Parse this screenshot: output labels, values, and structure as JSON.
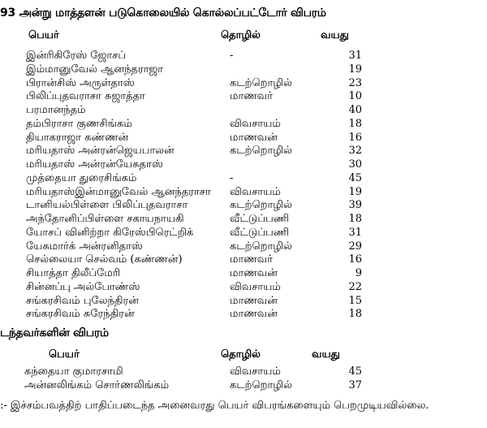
{
  "section1": {
    "title": "93 அன்று மாத்தளன் படுகொலையில் கொல்லப்பட்டோர் விபரம்",
    "headers": {
      "name": "பெயர்",
      "occupation": "தொழில்",
      "age": "வயது"
    },
    "rows": [
      {
        "name": "இன்ரிகிரேஸ் ஜோசப்",
        "occupation": "-",
        "age": "31"
      },
      {
        "name": "இம்மானுவேல் ஆனந்தராஜா",
        "occupation": "",
        "age": "19"
      },
      {
        "name": "பிரான்சிஸ் அருள்தாஸ்",
        "occupation": "கடற்றொழில்",
        "age": "23"
      },
      {
        "name": "பிலிப்புதவராசா சுஜாத்தா",
        "occupation": "மாணவர்",
        "age": "10"
      },
      {
        "name": "பரமானந்தம்",
        "occupation": "",
        "age": "40"
      },
      {
        "name": "தம்பிராசா குணசிங்கம்",
        "occupation": "விவசாயம்",
        "age": "18"
      },
      {
        "name": "தியாகராஜா கண்ணன்",
        "occupation": "மாணவன்",
        "age": "16"
      },
      {
        "name": "மரியதாஸ் அன்ரன்ஜெயபாலன்",
        "occupation": "கடற்றொழில்",
        "age": "32"
      },
      {
        "name": "மரியதாஸ் அன்ரன்யேசுதாஸ்",
        "occupation": "",
        "age": "30"
      },
      {
        "name": "முத்தையா துரைசிங்கம்",
        "occupation": "-",
        "age": "45"
      },
      {
        "name": "மரியதாஸ்இன்மானுவேல் ஆனந்தராசா",
        "occupation": "விவசாயம்",
        "age": "19"
      },
      {
        "name": "டானியல்பிள்ளை பிலிப்புதவராசா",
        "occupation": "கடற்றொழில்",
        "age": "39"
      },
      {
        "name": "அந்தோனிப்பிள்ளை சகாயநாயகி",
        "occupation": "வீட்டுப்பணி",
        "age": "18"
      },
      {
        "name": "யோசப் வினிற்றா கிரேஸ்பிரெட்றிக்",
        "occupation": "வீட்டுப்பணி",
        "age": "31"
      },
      {
        "name": "யேசுமார்க் அன்ரனிதாஸ்",
        "occupation": "கடற்றொழில்",
        "age": "29"
      },
      {
        "name": "செல்லையா செல்வம் (கண்ணன்)",
        "occupation": "மாணவர்",
        "age": "16"
      },
      {
        "name": "சியாத்தா திலீப்மேரி",
        "occupation": "மாணவன்",
        "age": "9"
      },
      {
        "name": "சின்னப்பு அல்போண்ஸ்",
        "occupation": "விவசாயம்",
        "age": "22"
      },
      {
        "name": "சங்கரசிவம் புலேந்திரன்",
        "occupation": "மாணவன்",
        "age": "15"
      },
      {
        "name": "சங்கரசிவம் சுரேந்திரன்",
        "occupation": "மாணவன்",
        "age": "18"
      }
    ]
  },
  "section2": {
    "title": "டந்தவர்களின் விபரம்",
    "headers": {
      "name": "பெயர்",
      "occupation": "தொழில்",
      "age": "வயது"
    },
    "rows": [
      {
        "name": "கந்தையா குமாரசாமி",
        "occupation": "விவசாயம்",
        "age": "45"
      },
      {
        "name": "அன்னலிங்கம் சொர்ணலிங்கம்",
        "occupation": "கடற்றொழில்",
        "age": "37"
      }
    ]
  },
  "footnote": ":- இச்சம்பவத்திற் பாதிப்படைந்த அனைவரது பெயர் விபரங்களையும் பெறமுடியவில்லை."
}
